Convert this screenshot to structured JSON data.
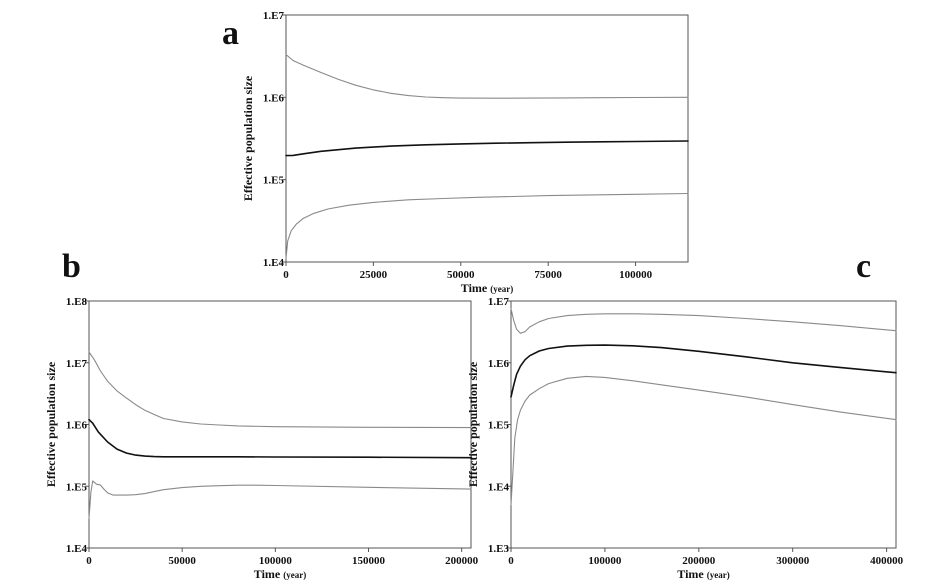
{
  "chart_data": [
    {
      "type": "line",
      "panel": "a",
      "xlabel": "Time",
      "xlabel_unit": "(year)",
      "ylabel": "Effective population size",
      "xlim": [
        0,
        115000
      ],
      "y_scale": "log",
      "ylim": [
        10000,
        10000000
      ],
      "xticks": [
        0,
        25000,
        50000,
        75000,
        100000
      ],
      "xtick_labels": [
        "0",
        "25000",
        "50000",
        "75000",
        "100000"
      ],
      "yticks": [
        10000,
        100000,
        1000000,
        10000000
      ],
      "ytick_labels": [
        "1.E4",
        "1.E5",
        "1.E6",
        "1.E7"
      ],
      "grid": false,
      "series": [
        {
          "color": "#8a8a8a",
          "stroke": 1.1,
          "x": [
            0,
            2000,
            5000,
            10000,
            15000,
            20000,
            25000,
            30000,
            35000,
            40000,
            45000,
            50000,
            60000,
            70000,
            80000,
            90000,
            100000,
            115000
          ],
          "y": [
            3300000,
            2800000,
            2450000,
            2000000,
            1650000,
            1400000,
            1230000,
            1120000,
            1050000,
            1010000,
            990000,
            980000,
            975000,
            980000,
            985000,
            990000,
            995000,
            1000000
          ]
        },
        {
          "color": "#111111",
          "stroke": 1.6,
          "x": [
            0,
            2000,
            5000,
            10000,
            20000,
            30000,
            40000,
            50000,
            60000,
            70000,
            80000,
            90000,
            100000,
            115000
          ],
          "y": [
            196000,
            197000,
            206000,
            221000,
            242000,
            256000,
            265000,
            272000,
            277000,
            281000,
            285000,
            288000,
            291000,
            295000
          ]
        },
        {
          "color": "#8a8a8a",
          "stroke": 1.1,
          "x": [
            0,
            500,
            1500,
            3000,
            5000,
            8000,
            12000,
            18000,
            25000,
            35000,
            45000,
            55000,
            65000,
            75000,
            85000,
            100000,
            115000
          ],
          "y": [
            11000,
            18000,
            24000,
            29000,
            34000,
            39000,
            44000,
            49000,
            53000,
            57000,
            59000,
            61000,
            62500,
            64000,
            65000,
            66500,
            68000
          ]
        }
      ]
    },
    {
      "type": "line",
      "panel": "b",
      "xlabel": "Time",
      "xlabel_unit": "(year)",
      "ylabel": "Effective population size",
      "xlim": [
        0,
        205000
      ],
      "y_scale": "log",
      "ylim": [
        10000,
        100000000
      ],
      "xticks": [
        0,
        50000,
        100000,
        150000,
        200000
      ],
      "xtick_labels": [
        "0",
        "50000",
        "100000",
        "150000",
        "200000"
      ],
      "yticks": [
        10000,
        100000,
        1000000,
        10000000,
        100000000
      ],
      "ytick_labels": [
        "1.E4",
        "1.E5",
        "1.E6",
        "1.E7",
        "1.E8"
      ],
      "grid": false,
      "series": [
        {
          "color": "#8a8a8a",
          "stroke": 1.1,
          "x": [
            0,
            3000,
            6000,
            10000,
            15000,
            20000,
            25000,
            30000,
            35000,
            40000,
            50000,
            60000,
            70000,
            80000,
            100000,
            150000,
            205000
          ],
          "y": [
            15000000,
            11000000,
            7500000,
            5000000,
            3500000,
            2700000,
            2100000,
            1700000,
            1450000,
            1250000,
            1100000,
            1020000,
            980000,
            950000,
            920000,
            900000,
            890000
          ]
        },
        {
          "color": "#111111",
          "stroke": 1.6,
          "x": [
            0,
            2000,
            5000,
            10000,
            15000,
            20000,
            25000,
            30000,
            35000,
            40000,
            50000,
            60000,
            80000,
            100000,
            150000,
            205000
          ],
          "y": [
            1200000,
            1050000,
            760000,
            520000,
            400000,
            345000,
            320000,
            308000,
            302000,
            300000,
            300000,
            300000,
            300000,
            298000,
            295000,
            290000
          ]
        },
        {
          "color": "#8a8a8a",
          "stroke": 1.1,
          "x": [
            0,
            1000,
            2000,
            4000,
            6000,
            8000,
            10000,
            13000,
            16000,
            20000,
            25000,
            30000,
            35000,
            40000,
            50000,
            60000,
            70000,
            80000,
            90000,
            100000,
            150000,
            205000
          ],
          "y": [
            30000,
            80000,
            122000,
            108000,
            105000,
            90000,
            78000,
            72000,
            72000,
            72000,
            73000,
            76000,
            82000,
            88000,
            95000,
            100000,
            102000,
            104000,
            104000,
            103000,
            96000,
            90000
          ]
        }
      ]
    },
    {
      "type": "line",
      "panel": "c",
      "xlabel": "Time",
      "xlabel_unit": "(year)",
      "ylabel": "Effective population size",
      "xlim": [
        0,
        410000
      ],
      "y_scale": "log",
      "ylim": [
        1000,
        10000000
      ],
      "xticks": [
        0,
        100000,
        200000,
        300000,
        400000
      ],
      "xtick_labels": [
        "0",
        "100000",
        "200000",
        "300000",
        "400000"
      ],
      "yticks": [
        1000,
        10000,
        100000,
        1000000,
        10000000
      ],
      "ytick_labels": [
        "1.E3",
        "1.E4",
        "1.E5",
        "1.E6",
        "1.E7"
      ],
      "grid": false,
      "series": [
        {
          "color": "#8a8a8a",
          "stroke": 1.1,
          "x": [
            0,
            3000,
            6000,
            10000,
            15000,
            20000,
            30000,
            40000,
            60000,
            80000,
            100000,
            130000,
            160000,
            200000,
            250000,
            300000,
            350000,
            410000
          ],
          "y": [
            7500000,
            4800000,
            3500000,
            3000000,
            3200000,
            3800000,
            4600000,
            5200000,
            5800000,
            6100000,
            6200000,
            6200000,
            6100000,
            5800000,
            5200000,
            4600000,
            4000000,
            3300000
          ]
        },
        {
          "color": "#111111",
          "stroke": 1.6,
          "x": [
            0,
            3000,
            6000,
            10000,
            15000,
            20000,
            30000,
            40000,
            60000,
            80000,
            100000,
            130000,
            160000,
            200000,
            250000,
            300000,
            350000,
            410000
          ],
          "y": [
            280000,
            440000,
            650000,
            880000,
            1120000,
            1300000,
            1550000,
            1700000,
            1860000,
            1920000,
            1930000,
            1880000,
            1760000,
            1530000,
            1250000,
            1000000,
            840000,
            690000
          ]
        },
        {
          "color": "#8a8a8a",
          "stroke": 1.1,
          "x": [
            0,
            2000,
            4000,
            7000,
            10000,
            15000,
            20000,
            30000,
            40000,
            60000,
            80000,
            100000,
            130000,
            160000,
            200000,
            250000,
            300000,
            350000,
            410000
          ],
          "y": [
            5000,
            17000,
            60000,
            120000,
            170000,
            240000,
            300000,
            380000,
            460000,
            560000,
            600000,
            580000,
            510000,
            440000,
            360000,
            280000,
            210000,
            160000,
            120000
          ]
        }
      ]
    }
  ]
}
